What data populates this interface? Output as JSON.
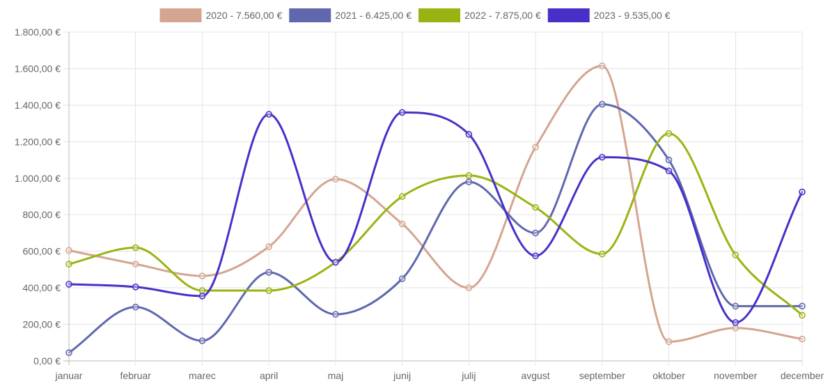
{
  "chart_data": {
    "type": "line",
    "smooth": true,
    "title": "",
    "xlabel": "",
    "ylabel": "",
    "categories": [
      "januar",
      "februar",
      "marec",
      "april",
      "maj",
      "junij",
      "julij",
      "avgust",
      "september",
      "oktober",
      "november",
      "december"
    ],
    "ylim": [
      0,
      1800
    ],
    "yticks": [
      0,
      200,
      400,
      600,
      800,
      1000,
      1200,
      1400,
      1600,
      1800
    ],
    "ytick_labels": [
      "0,00 €",
      "200,00 €",
      "400,00 €",
      "600,00 €",
      "800,00 €",
      "1.000,00 €",
      "1.200,00 €",
      "1.400,00 €",
      "1.600,00 €",
      "1.800,00 €"
    ],
    "grid": true,
    "legend_position": "top",
    "series": [
      {
        "name": "2020 - 7.560,00 €",
        "color": "#d4a590",
        "values": [
          605,
          530,
          465,
          625,
          995,
          750,
          400,
          1170,
          1615,
          105,
          180,
          120
        ]
      },
      {
        "name": "2021 - 6.425,00 €",
        "color": "#5f68ad",
        "values": [
          45,
          295,
          110,
          485,
          255,
          450,
          980,
          700,
          1405,
          1100,
          300,
          300
        ]
      },
      {
        "name": "2022 - 7.875,00 €",
        "color": "#9bb312",
        "values": [
          530,
          620,
          385,
          385,
          540,
          900,
          1015,
          840,
          585,
          1245,
          580,
          250
        ]
      },
      {
        "name": "2023 - 9.535,00 €",
        "color": "#4730c8",
        "values": [
          420,
          405,
          355,
          1350,
          540,
          1360,
          1240,
          575,
          1115,
          1040,
          210,
          925
        ]
      }
    ]
  }
}
